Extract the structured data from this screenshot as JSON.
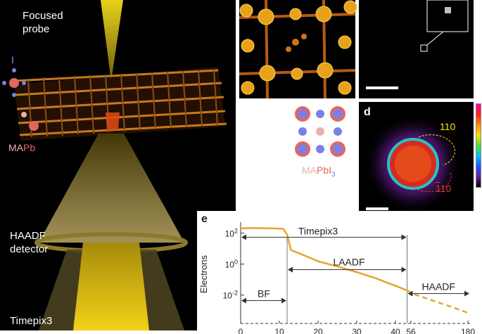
{
  "left_panel": {
    "focused_probe": [
      "Focused",
      "probe"
    ],
    "haadf_detector": [
      "HAADF",
      "detector"
    ],
    "timepix3": "Timepix3",
    "legend_I": "I",
    "legend_MA": "MA",
    "legend_Pb": "Pb"
  },
  "panel_c": {
    "formula_MA": "MA",
    "formula_PbI": "PbI",
    "formula_sub": "3"
  },
  "panel_d": {
    "label": "d",
    "spot_110": "110",
    "spot_1bar10": "1",
    "spot_1bar10_rest": "10"
  },
  "colors": {
    "background_dark": "#000000",
    "probe_yellow": "#d6c21a",
    "lattice_orange": "#c87a1e",
    "iodine_blue": "#7c80e6",
    "lead_red": "#e2665f",
    "ma_pink": "#e8b3ae",
    "curve_orange": "#e6a52b",
    "label_yellow": "#ffe700",
    "label_red": "#e23a2a"
  },
  "chart_data": {
    "type": "line",
    "panel_label": "e",
    "ylabel": "Electrons",
    "y_scale": "log",
    "y_ticks": [
      "10^2",
      "10^0",
      "10^-2"
    ],
    "x_ticks": [
      "0",
      "10",
      "20",
      "30",
      "40",
      "56",
      "180"
    ],
    "x_axis_break": [
      44,
      56
    ],
    "regions": [
      {
        "name": "BF",
        "x_range": [
          0,
          12
        ]
      },
      {
        "name": "LAADF",
        "x_range": [
          12,
          43
        ]
      },
      {
        "name": "Timepix3",
        "x_range": [
          0,
          43
        ]
      },
      {
        "name": "HAADF",
        "x_range": [
          43,
          180
        ]
      }
    ],
    "series": [
      {
        "style": "solid",
        "x": [
          0,
          4,
          8,
          11,
          12,
          13,
          16,
          20,
          25,
          30,
          35,
          38,
          40,
          42,
          43
        ],
        "y": [
          200,
          210,
          200,
          190,
          80,
          8,
          4,
          1.5,
          0.7,
          0.3,
          0.12,
          0.06,
          0.04,
          0.025,
          0.02
        ]
      },
      {
        "style": "dashed",
        "x": [
          43,
          60,
          90,
          120,
          150,
          180
        ],
        "y": [
          0.02,
          0.012,
          0.006,
          0.003,
          0.0015,
          0.0007
        ]
      }
    ]
  }
}
